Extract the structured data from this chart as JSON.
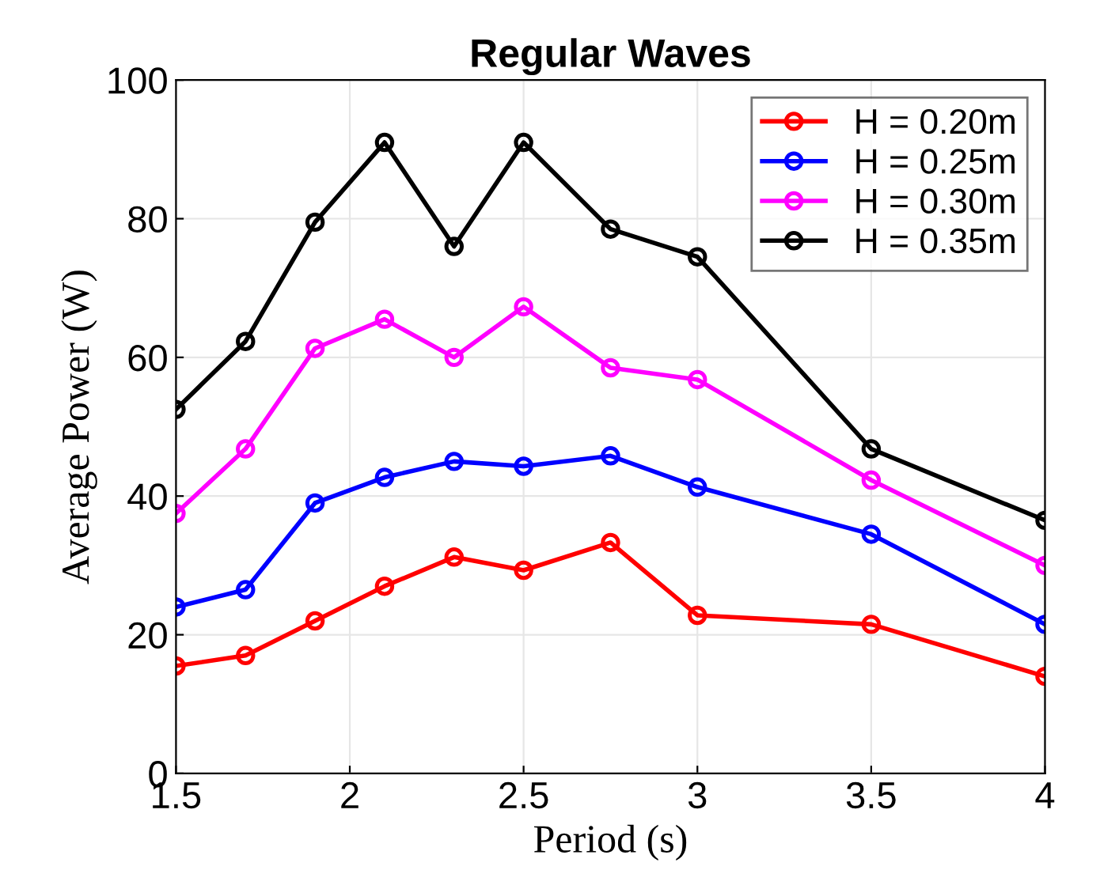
{
  "chart_data": {
    "type": "line",
    "title": "Regular Waves",
    "xlabel": "Period (s)",
    "ylabel": "Average Power (W)",
    "x": [
      1.5,
      1.7,
      1.9,
      2.1,
      2.3,
      2.5,
      2.75,
      3,
      3.5,
      4
    ],
    "series": [
      {
        "name": "H = 0.20m",
        "color": "#ff0000",
        "values": [
          15.5,
          17,
          22,
          27,
          31.2,
          29.3,
          33.3,
          22.8,
          21.5,
          14
        ]
      },
      {
        "name": "H = 0.25m",
        "color": "#0000ff",
        "values": [
          24,
          26.5,
          39,
          42.7,
          45,
          44.3,
          45.8,
          41.3,
          34.5,
          21.5
        ]
      },
      {
        "name": "H = 0.30m",
        "color": "#ff00ff",
        "values": [
          37.5,
          46.8,
          61.3,
          65.5,
          60,
          67.3,
          58.5,
          56.8,
          42.3,
          30
        ]
      },
      {
        "name": "H = 0.35m",
        "color": "#000000",
        "values": [
          52.5,
          62.3,
          79.5,
          91,
          76,
          91,
          78.5,
          74.5,
          46.8,
          36.5
        ]
      }
    ],
    "xlim": [
      1.5,
      4
    ],
    "ylim": [
      0,
      100
    ],
    "xticks": [
      1.5,
      2,
      2.5,
      3,
      3.5,
      4
    ],
    "yticks": [
      0,
      20,
      40,
      60,
      80,
      100
    ],
    "grid": true,
    "legend": "top right",
    "marker": "circle",
    "line_style": "solid"
  }
}
